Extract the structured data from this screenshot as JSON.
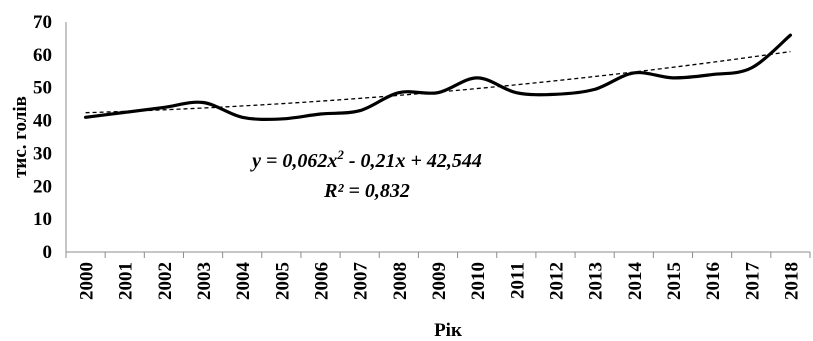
{
  "chart_data": {
    "type": "line",
    "title": "",
    "xlabel": "Рік",
    "ylabel": "тис. голів",
    "x": [
      "2000",
      "2001",
      "2002",
      "2003",
      "2004",
      "2005",
      "2006",
      "2007",
      "2008",
      "2009",
      "2010",
      "2011",
      "2012",
      "2013",
      "2014",
      "2015",
      "2016",
      "2017",
      "2018"
    ],
    "ylim": [
      0,
      70
    ],
    "yticks": [
      "0",
      "10",
      "20",
      "30",
      "40",
      "50",
      "60",
      "70"
    ],
    "grid": false,
    "legend": "none",
    "series": [
      {
        "values": [
          41,
          42.5,
          44,
          45.5,
          41,
          40.5,
          42,
          43,
          48.5,
          48.5,
          53,
          48.5,
          48,
          49.5,
          54.5,
          53,
          54,
          56,
          66
        ],
        "color": "#000000",
        "style": "solid"
      }
    ],
    "trendline": {
      "type": "polynomial",
      "order": 2,
      "start": 42.4,
      "end": 61,
      "color": "#000000",
      "style": "dashed"
    },
    "annotations": {
      "equation_lead": "y = 0,062x",
      "equation_exp": "2",
      "equation_tail": " - 0,21x + 42,544",
      "r_squared": "R² = 0,832"
    }
  }
}
